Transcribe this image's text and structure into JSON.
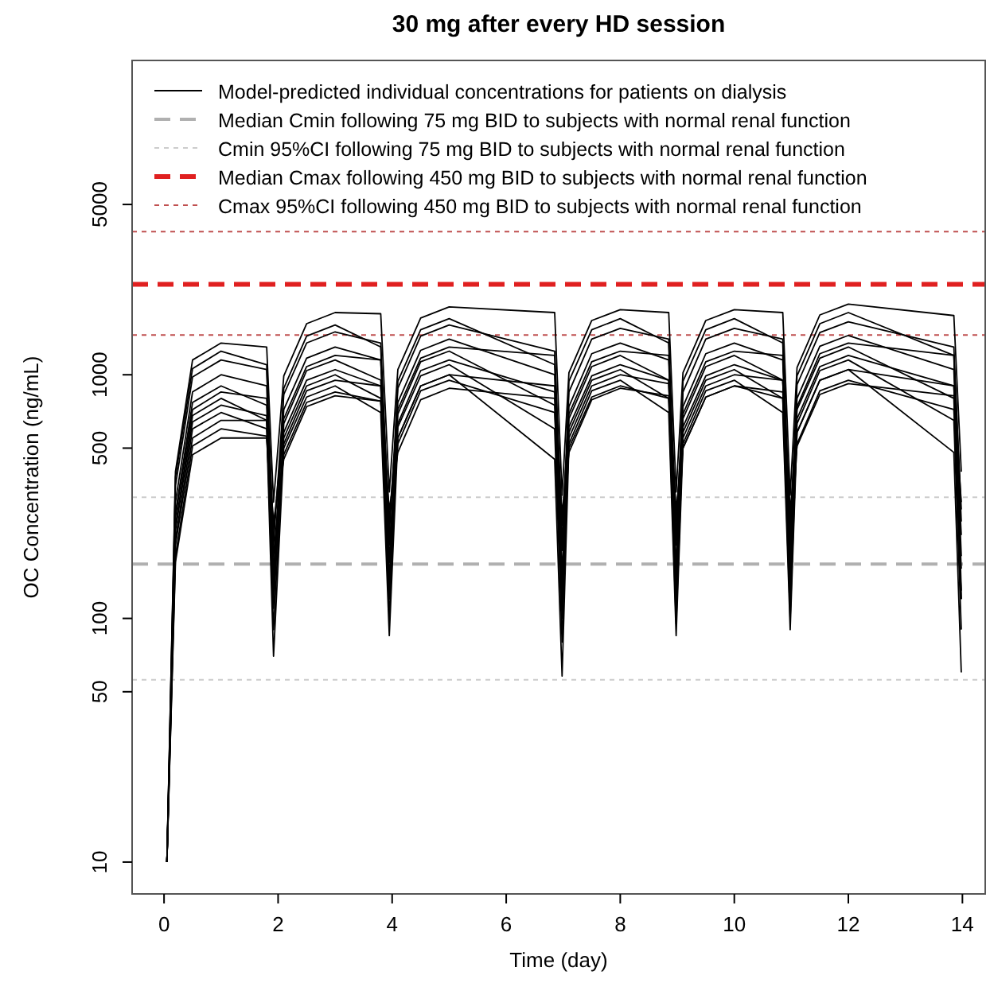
{
  "chart_data": {
    "type": "line",
    "title": "30 mg after every HD session",
    "xlabel": "Time (day)",
    "ylabel": "OC Concentration (ng/mL)",
    "log": "y",
    "grid": false,
    "legend": "top",
    "marker": "none",
    "xlim": [
      -0.56,
      14.4
    ],
    "xticks": [
      0,
      2,
      4,
      6,
      8,
      10,
      12,
      14
    ],
    "ylim": [
      7.4,
      19500
    ],
    "yticks": [
      10,
      50,
      100,
      500,
      1000,
      5000
    ],
    "x": [
      0.05,
      0.2,
      0.5,
      1.0,
      1.8,
      1.92,
      2.1,
      2.5,
      3.0,
      3.8,
      3.95,
      4.1,
      4.5,
      5.0,
      6.85,
      6.98,
      7.1,
      7.5,
      8.0,
      8.85,
      8.98,
      9.1,
      9.5,
      10.0,
      10.85,
      10.98,
      11.1,
      11.5,
      12.0,
      13.85,
      13.98
    ],
    "series": [
      {
        "name": "Model-predicted individual concentrations for patients on dialysis",
        "color": "#000000",
        "values": [
          10,
          400,
          1150,
          1350,
          1300,
          300,
          990,
          1620,
          1800,
          1780,
          330,
          1050,
          1710,
          1900,
          1800,
          320,
          1020,
          1670,
          1850,
          1800,
          330,
          1020,
          1670,
          1850,
          1800,
          320,
          1070,
          1760,
          1950,
          1750,
          400
        ]
      },
      {
        "color": "#000000",
        "values": [
          10,
          350,
          980,
          1150,
          1050,
          200,
          830,
          1350,
          1500,
          1350,
          220,
          880,
          1440,
          1600,
          1250,
          200,
          850,
          1400,
          1550,
          1400,
          210,
          850,
          1400,
          1550,
          1400,
          220,
          910,
          1490,
          1650,
          1300,
          250
        ]
      },
      {
        "color": "#000000",
        "values": [
          10,
          300,
          850,
          1000,
          900,
          150,
          720,
          1170,
          1300,
          1150,
          170,
          770,
          1260,
          1400,
          1000,
          150,
          740,
          1220,
          1350,
          1150,
          160,
          740,
          1220,
          1350,
          1150,
          170,
          800,
          1310,
          1450,
          1050,
          180
        ]
      },
      {
        "color": "#000000",
        "values": [
          10,
          270,
          770,
          900,
          750,
          110,
          630,
          1040,
          1150,
          950,
          120,
          690,
          1130,
          1250,
          750,
          100,
          660,
          1080,
          1200,
          950,
          110,
          660,
          1080,
          1200,
          950,
          120,
          720,
          1170,
          1300,
          800,
          120
        ]
      },
      {
        "color": "#000000",
        "values": [
          10,
          240,
          680,
          800,
          650,
          90,
          550,
          900,
          1000,
          800,
          100,
          610,
          990,
          1100,
          600,
          80,
          580,
          950,
          1050,
          800,
          95,
          580,
          950,
          1050,
          800,
          100,
          630,
          1040,
          1150,
          650,
          90
        ]
      },
      {
        "color": "#000000",
        "values": [
          10,
          210,
          600,
          700,
          600,
          70,
          500,
          810,
          900,
          700,
          85,
          550,
          900,
          1000,
          450,
          58,
          520,
          860,
          950,
          700,
          85,
          520,
          860,
          950,
          700,
          90,
          580,
          950,
          1050,
          480,
          60
        ]
      },
      {
        "color": "#000000",
        "values": [
          10,
          170,
          470,
          550,
          550,
          250,
          450,
          740,
          820,
          780,
          280,
          480,
          790,
          880,
          800,
          270,
          480,
          790,
          880,
          820,
          280,
          500,
          810,
          900,
          850,
          280,
          510,
          830,
          920,
          820,
          300
        ]
      },
      {
        "color": "#000000",
        "values": [
          10,
          200,
          550,
          650,
          650,
          180,
          520,
          860,
          950,
          900,
          200,
          550,
          900,
          1000,
          900,
          190,
          550,
          900,
          1000,
          920,
          200,
          550,
          900,
          1000,
          950,
          200,
          580,
          950,
          1050,
          900,
          220
        ]
      },
      {
        "color": "#000000",
        "values": [
          10,
          380,
          1060,
          1250,
          1100,
          130,
          880,
          1440,
          1600,
          1300,
          140,
          940,
          1530,
          1700,
          1100,
          120,
          940,
          1530,
          1700,
          1350,
          130,
          940,
          1530,
          1700,
          1350,
          140,
          990,
          1620,
          1800,
          1200,
          130
        ]
      },
      {
        "color": "#000000",
        "values": [
          10,
          230,
          640,
          750,
          680,
          120,
          580,
          950,
          1050,
          900,
          130,
          630,
          1040,
          1150,
          850,
          110,
          610,
          990,
          1100,
          950,
          120,
          610,
          990,
          1100,
          950,
          130,
          660,
          1080,
          1200,
          900,
          120
        ]
      },
      {
        "color": "#000000",
        "values": [
          10,
          260,
          720,
          850,
          800,
          230,
          660,
          1080,
          1200,
          1150,
          250,
          720,
          1170,
          1300,
          1200,
          240,
          690,
          1130,
          1250,
          1200,
          250,
          690,
          1130,
          1250,
          1200,
          250,
          740,
          1220,
          1350,
          1200,
          280
        ]
      },
      {
        "color": "#000000",
        "values": [
          10,
          180,
          510,
          600,
          560,
          160,
          470,
          770,
          850,
          780,
          170,
          520,
          860,
          950,
          700,
          150,
          500,
          810,
          900,
          800,
          160,
          500,
          810,
          900,
          800,
          170,
          520,
          860,
          950,
          720,
          160
        ]
      }
    ],
    "ref_lines": [
      {
        "axis": "y",
        "value": 167,
        "label": "Median Cmin following 75 mg BID to subjects with normal renal function",
        "color": "#b0b0b0",
        "line_style": "dashed"
      },
      {
        "axis": "y",
        "value": 314,
        "label": "Cmin 95%CI following 75 mg BID to subjects with normal renal function",
        "color": "#cccccc",
        "line_style": "dotted"
      },
      {
        "axis": "y",
        "value": 56,
        "label": null,
        "color": "#cccccc",
        "line_style": "dotted"
      },
      {
        "axis": "y",
        "value": 2350,
        "label": "Median Cmax following 450 mg BID to subjects with normal renal function",
        "color": "#e02020",
        "line_style": "dashed"
      },
      {
        "axis": "y",
        "value": 3870,
        "label": "Cmax 95%CI following 450 mg BID to subjects with normal renal function",
        "color": "#c05050",
        "line_style": "dotted"
      },
      {
        "axis": "y",
        "value": 1455,
        "label": null,
        "color": "#c05050",
        "line_style": "dotted"
      }
    ]
  }
}
